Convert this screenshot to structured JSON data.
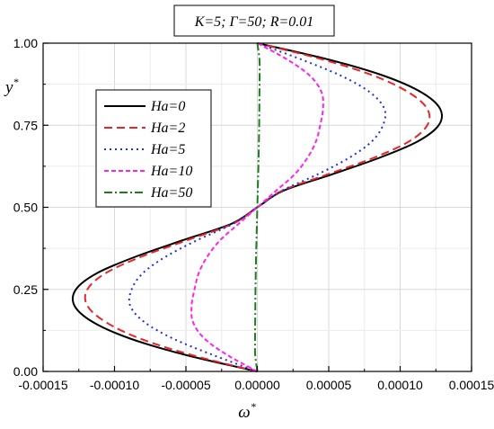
{
  "chart_data": {
    "type": "line",
    "title": "K=5; Γ=50; R=0.01",
    "xlabel": "ω",
    "xlabel_sup": "*",
    "ylabel": "y",
    "ylabel_sup": "*",
    "xlim": [
      -0.00015,
      0.00015
    ],
    "ylim": [
      0.0,
      1.0
    ],
    "xticks": [
      -0.00015,
      -0.0001,
      -5e-05,
      0.0,
      5e-05,
      0.0001,
      0.00015
    ],
    "xtick_labels": [
      "-0.00015",
      "-0.00010",
      "-0.00005",
      "0.00000",
      "0.00005",
      "0.00010",
      "0.00015"
    ],
    "yticks": [
      0.0,
      0.25,
      0.5,
      0.75,
      1.0
    ],
    "ytick_labels": [
      "0.00",
      "0.25",
      "0.50",
      "0.75",
      "1.00"
    ],
    "grid": true,
    "legend_position": "upper-left",
    "y": [
      0.0,
      0.05,
      0.1,
      0.15,
      0.2,
      0.25,
      0.3,
      0.35,
      0.4,
      0.45,
      0.5,
      0.55,
      0.6,
      0.65,
      0.7,
      0.75,
      0.8,
      0.85,
      0.9,
      0.95,
      1.0
    ],
    "series": [
      {
        "name": "Ha=0",
        "color": "#000000",
        "dash": "solid",
        "x": [
          0.0,
          -5e-05,
          -8.9e-05,
          -0.000115,
          -0.000128,
          -0.000127,
          -0.000112,
          -8.5e-05,
          -5.2e-05,
          -1.8e-05,
          0.0,
          1.8e-05,
          5.2e-05,
          8.5e-05,
          0.000112,
          0.000127,
          0.000128,
          0.000115,
          8.9e-05,
          5e-05,
          0.0
        ]
      },
      {
        "name": "Ha=2",
        "color": "#e8262a",
        "dash": "dashed",
        "x": [
          0.0,
          -4.6e-05,
          -8.2e-05,
          -0.000106,
          -0.000119,
          -0.000119,
          -0.000106,
          -8.1e-05,
          -4.9e-05,
          -1.7e-05,
          0.0,
          1.7e-05,
          4.9e-05,
          8.1e-05,
          0.000106,
          0.000119,
          0.000119,
          0.000106,
          8.2e-05,
          4.6e-05,
          0.0
        ]
      },
      {
        "name": "Ha=5",
        "color": "#1f2fe0",
        "dash": "dotted",
        "x": [
          0.0,
          -3.1e-05,
          -5.9e-05,
          -7.9e-05,
          -8.9e-05,
          -8.8e-05,
          -8e-05,
          -6.4e-05,
          -4.2e-05,
          -1.7e-05,
          0.0,
          1.7e-05,
          4.2e-05,
          6.4e-05,
          8e-05,
          8.8e-05,
          8.9e-05,
          7.9e-05,
          5.9e-05,
          3.1e-05,
          0.0
        ]
      },
      {
        "name": "Ha=10",
        "color": "#ff22ee",
        "dash": "short-dash",
        "x": [
          0.0,
          -2.1e-05,
          -3.7e-05,
          -4.5e-05,
          -4.6e-05,
          -4.4e-05,
          -4.1e-05,
          -3.5e-05,
          -2.6e-05,
          -1.3e-05,
          0.0,
          1.3e-05,
          2.6e-05,
          3.5e-05,
          4.1e-05,
          4.4e-05,
          4.6e-05,
          4.5e-05,
          3.7e-05,
          2.1e-05,
          0.0
        ]
      },
      {
        "name": "Ha=50",
        "color": "#1e7d1e",
        "dash": "dash-dot",
        "x": [
          0.0,
          -1.5e-06,
          -1.6e-06,
          -1.5e-06,
          -1.4e-06,
          -1.3e-06,
          -1.1e-06,
          -9e-07,
          -6e-07,
          -3e-07,
          0.0,
          3e-07,
          6e-07,
          9e-07,
          1.1e-06,
          1.3e-06,
          1.4e-06,
          1.5e-06,
          1.6e-06,
          1.5e-06,
          0.0
        ]
      }
    ]
  }
}
